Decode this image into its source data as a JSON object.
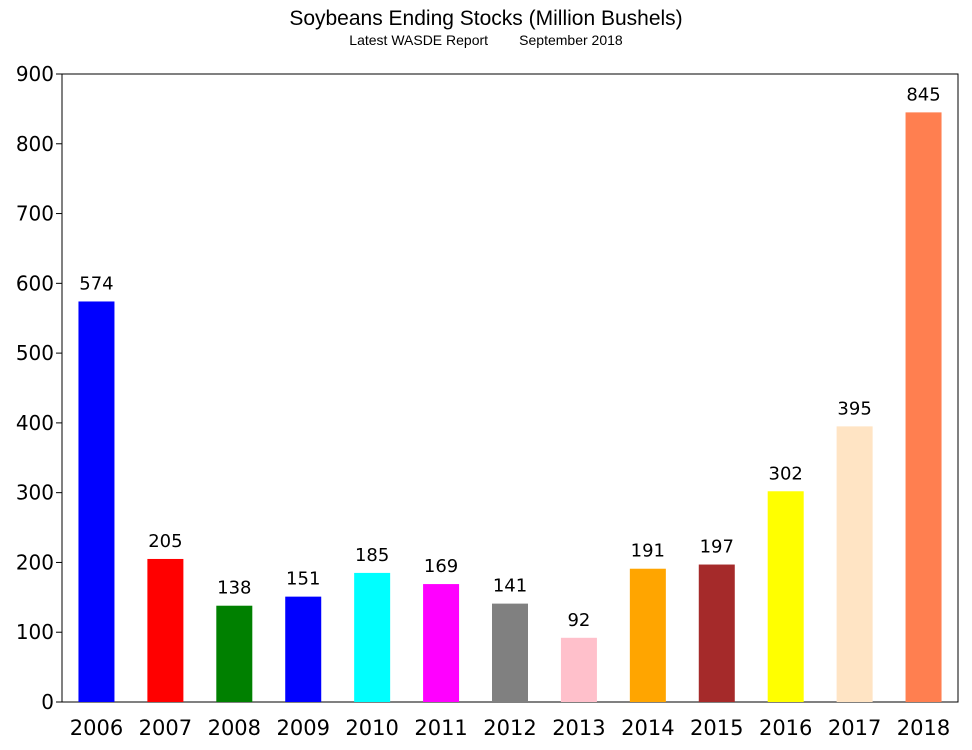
{
  "chart_data": {
    "type": "bar",
    "title": "Soybeans Ending Stocks (Million Bushels)",
    "subtitle": "Latest WASDE Report        September 2018",
    "xlabel": "",
    "ylabel": "",
    "ylim": [
      0,
      900
    ],
    "yticks": [
      "0",
      "100",
      "200",
      "300",
      "400",
      "500",
      "600",
      "700",
      "800",
      "900"
    ],
    "grid": false,
    "legend": "none",
    "categories": [
      "2006",
      "2007",
      "2008",
      "2009",
      "2010",
      "2011",
      "2012",
      "2013",
      "2014",
      "2015",
      "2016",
      "2017",
      "2018"
    ],
    "values": [
      574,
      205,
      138,
      151,
      185,
      169,
      141,
      92,
      191,
      197,
      302,
      395,
      845
    ],
    "data_labels": [
      "574",
      "205",
      "138",
      "151",
      "185",
      "169",
      "141",
      "92",
      "191",
      "197",
      "302",
      "395",
      "845"
    ],
    "colors": [
      "#0000ff",
      "#ff0000",
      "#008000",
      "#0000ff",
      "#00ffff",
      "#ff00ff",
      "#808080",
      "#ffc0cb",
      "#ffa500",
      "#a52a2a",
      "#ffff00",
      "#ffe4c4",
      "#ff7f50"
    ]
  }
}
